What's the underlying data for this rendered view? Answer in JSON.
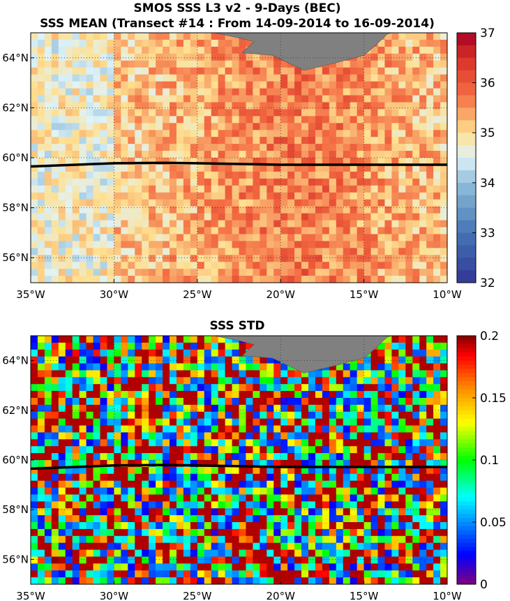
{
  "title_line1": "SMOS SSS L3 v2 - 9-Days (BEC)",
  "chart_data": [
    {
      "type": "heatmap",
      "title": "SSS MEAN (Transect #14 : From 14-09-2014 to 16-09-2014)",
      "x_ticks": [
        "35°W",
        "30°W",
        "25°W",
        "20°W",
        "15°W",
        "10°W"
      ],
      "y_ticks": [
        "64°N",
        "62°N",
        "60°N",
        "58°N",
        "56°N"
      ],
      "xlim": [
        -35,
        -10
      ],
      "ylim": [
        55,
        65
      ],
      "grid": true,
      "colorbar": {
        "min": 32,
        "max": 37,
        "ticks": [
          "37",
          "36",
          "35",
          "34",
          "33",
          "32"
        ],
        "colormap": "blue-white-red"
      },
      "land_color": "#808080",
      "transect_line": {
        "lon": [
          -35,
          -30,
          -27,
          -25,
          -20,
          -15,
          -10
        ],
        "lat": [
          59.65,
          59.78,
          59.8,
          59.78,
          59.72,
          59.72,
          59.72
        ],
        "color": "#000000"
      }
    },
    {
      "type": "heatmap",
      "title": "SSS STD",
      "x_ticks": [
        "35°W",
        "30°W",
        "25°W",
        "20°W",
        "15°W",
        "10°W"
      ],
      "y_ticks": [
        "64°N",
        "62°N",
        "60°N",
        "58°N",
        "56°N"
      ],
      "xlim": [
        -35,
        -10
      ],
      "ylim": [
        55,
        65
      ],
      "grid": true,
      "colorbar": {
        "min": 0,
        "max": 0.2,
        "ticks": [
          "0.2",
          "0.15",
          "0.1",
          "0.05",
          "0"
        ],
        "colormap": "jet"
      },
      "land_color": "#808080",
      "transect_line": {
        "lon": [
          -35,
          -30,
          -27,
          -25,
          -20,
          -15,
          -10
        ],
        "lat": [
          59.65,
          59.78,
          59.8,
          59.78,
          59.72,
          59.72,
          59.72
        ],
        "color": "#000000"
      }
    }
  ]
}
